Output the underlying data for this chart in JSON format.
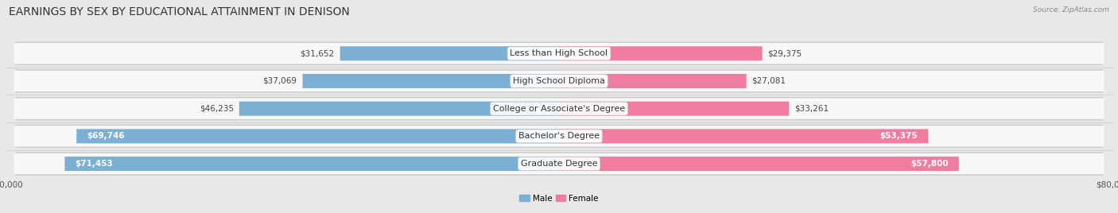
{
  "title": "EARNINGS BY SEX BY EDUCATIONAL ATTAINMENT IN DENISON",
  "source": "Source: ZipAtlas.com",
  "categories": [
    "Less than High School",
    "High School Diploma",
    "College or Associate's Degree",
    "Bachelor's Degree",
    "Graduate Degree"
  ],
  "male_values": [
    31652,
    37069,
    46235,
    69746,
    71453
  ],
  "female_values": [
    29375,
    27081,
    33261,
    53375,
    57800
  ],
  "male_color": "#7bafd4",
  "female_color": "#f07ca0",
  "male_label": "Male",
  "female_label": "Female",
  "xlim": 80000,
  "bg_color": "#e8e8e8",
  "row_bg_color": "#f5f5f5",
  "title_fontsize": 10,
  "label_fontsize": 8,
  "value_fontsize": 7.5,
  "axis_label_fontsize": 7.5,
  "male_threshold": 50000,
  "female_threshold": 50000
}
